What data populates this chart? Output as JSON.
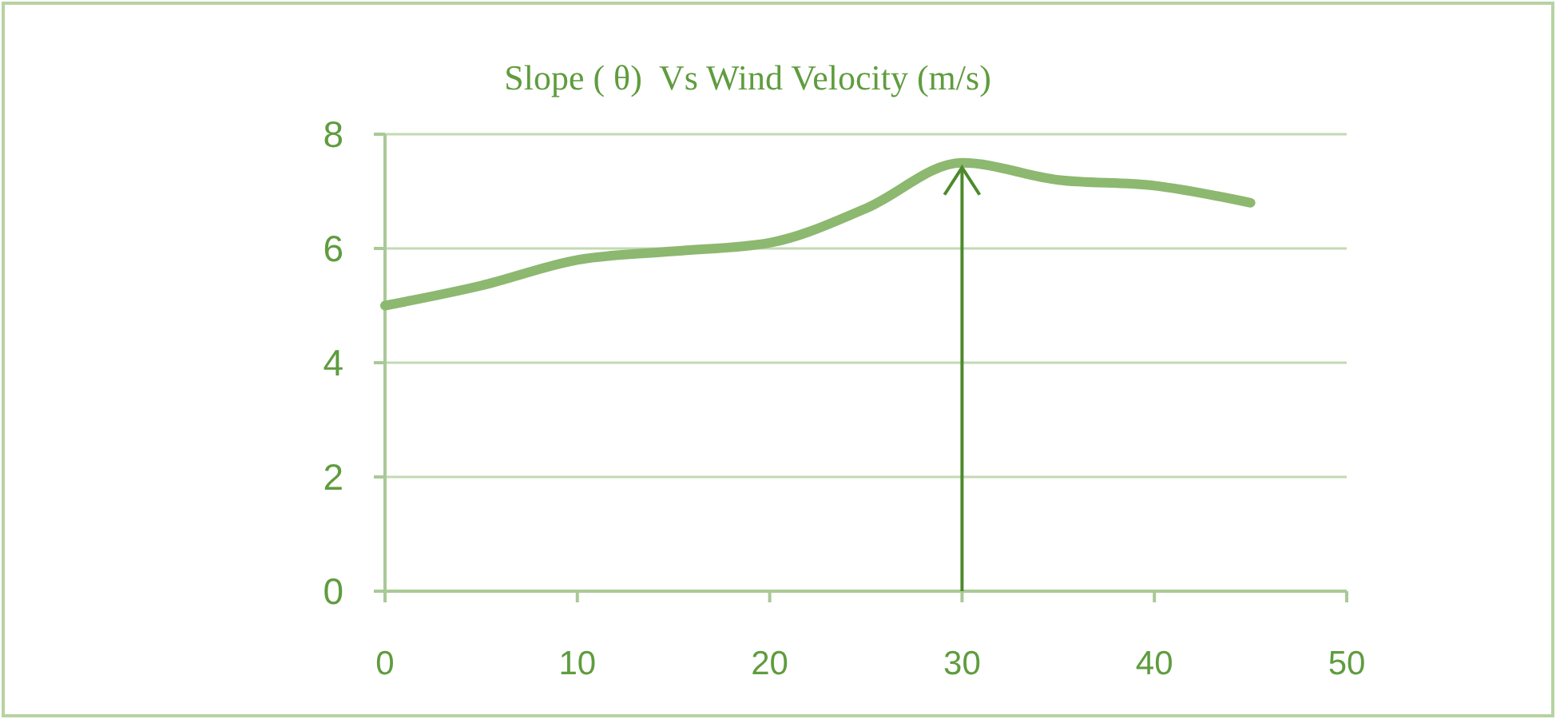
{
  "chart_data": {
    "type": "line",
    "title": "Slope ( θ)  Vs Wind Velocity (m/s)",
    "x": [
      0,
      5,
      10,
      15,
      20,
      25,
      30,
      35,
      40,
      45
    ],
    "series": [
      {
        "color": "#8cb870",
        "values": [
          5.0,
          5.35,
          5.8,
          5.95,
          6.1,
          6.7,
          7.5,
          7.2,
          7.1,
          6.8
        ]
      }
    ],
    "xlim": [
      0,
      50
    ],
    "xticks": [
      0,
      10,
      20,
      30,
      40,
      50
    ],
    "ylim": [
      0,
      8
    ],
    "yticks": [
      0,
      2,
      4,
      6,
      8
    ],
    "ref_lines": [
      {
        "axis": "x",
        "value": 30,
        "color": "#4d8a2c"
      }
    ],
    "grid": "y",
    "marker": "none",
    "line_style": "solid"
  }
}
